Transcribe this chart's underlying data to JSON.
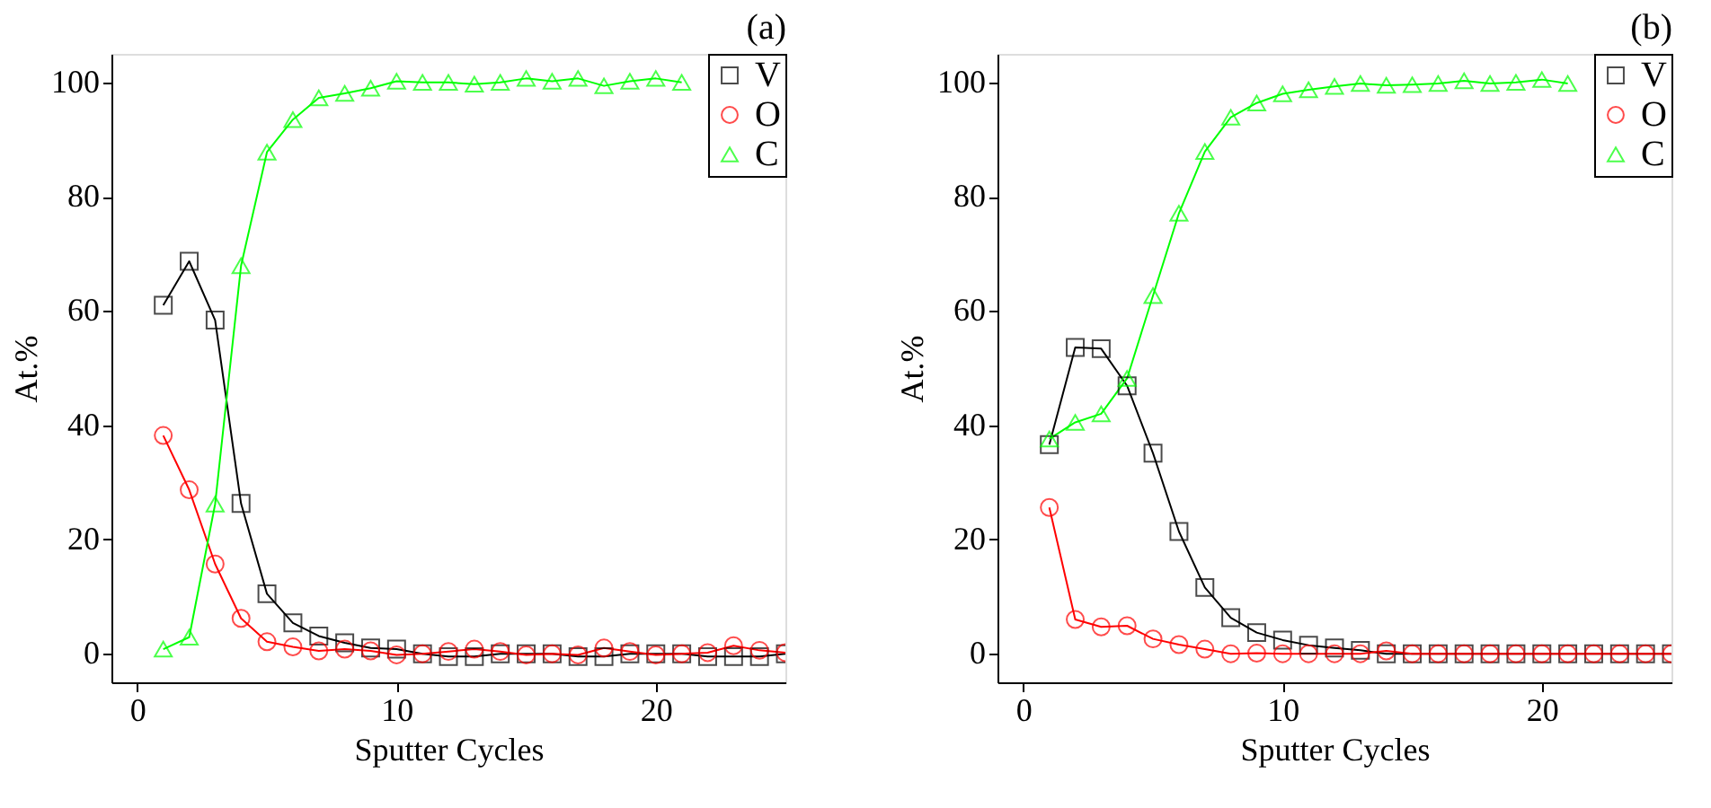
{
  "chart_data": [
    {
      "type": "line",
      "title": "(a)",
      "xlabel": "Sputter Cycles",
      "ylabel": "At.%",
      "legend": "top right",
      "grid": false,
      "line_style": "solid",
      "x": [
        1,
        2,
        3,
        4,
        5,
        6,
        7,
        8,
        9,
        10,
        11,
        12,
        13,
        14,
        15,
        16,
        17,
        18,
        19,
        20,
        21,
        22,
        23,
        24,
        25
      ],
      "xlim": [
        -1,
        25
      ],
      "ylim": [
        -5,
        105
      ],
      "xticks": [
        0,
        10,
        20
      ],
      "yticks": [
        0,
        20,
        40,
        60,
        80,
        100
      ],
      "series": [
        {
          "name": "V",
          "color": "#000000",
          "marker": "square",
          "values": [
            61,
            68.7,
            58.4,
            26.3,
            10.5,
            5.4,
            3.1,
            1.9,
            1,
            0.8,
            0,
            -0.5,
            -0.5,
            0,
            0,
            0,
            -0.5,
            -0.5,
            0,
            0,
            0,
            -0.5,
            -0.5,
            -0.5,
            0
          ]
        },
        {
          "name": "O",
          "color": "#ff0000",
          "marker": "circle",
          "values": [
            38.2,
            28.7,
            15.7,
            6.2,
            2.1,
            1.2,
            0.5,
            0.8,
            0.5,
            -0.2,
            0,
            0.4,
            0.8,
            0.4,
            -0.2,
            0,
            -0.2,
            1,
            0.4,
            -0.2,
            0,
            0.2,
            1.4,
            0.6,
            0.2
          ]
        },
        {
          "name": "C",
          "color": "#00ff00",
          "marker": "triangle",
          "values": [
            0.8,
            2.9,
            26.2,
            67.9,
            87.8,
            93.5,
            97.3,
            98.1,
            99,
            100.2,
            100,
            100,
            99.7,
            100,
            100.7,
            100.2,
            100.7,
            99.4,
            100.2,
            100.7,
            100,
            null,
            null,
            null,
            null
          ]
        }
      ]
    },
    {
      "type": "line",
      "title": "(b)",
      "xlabel": "Sputter Cycles",
      "ylabel": "At.%",
      "legend": "top right",
      "grid": false,
      "line_style": "solid",
      "x": [
        1,
        2,
        3,
        4,
        5,
        6,
        7,
        8,
        9,
        10,
        11,
        12,
        13,
        14,
        15,
        16,
        17,
        18,
        19,
        20,
        21,
        22,
        23,
        24,
        25
      ],
      "xlim": [
        -1,
        25
      ],
      "ylim": [
        -5,
        105
      ],
      "xticks": [
        0,
        10,
        20
      ],
      "yticks": [
        0,
        20,
        40,
        60,
        80,
        100
      ],
      "series": [
        {
          "name": "V",
          "color": "#000000",
          "marker": "square",
          "values": [
            36.6,
            53.6,
            53.4,
            46.9,
            35.1,
            21.4,
            11.6,
            6.3,
            3.7,
            2.4,
            1.5,
            1,
            0.6,
            0,
            0,
            0,
            0,
            0,
            0,
            0,
            0,
            0,
            0,
            0,
            0
          ]
        },
        {
          "name": "O",
          "color": "#ff0000",
          "marker": "circle",
          "values": [
            25.6,
            6,
            4.7,
            4.9,
            2.6,
            1.6,
            0.8,
            0,
            0.1,
            0,
            0,
            0,
            0,
            0.5,
            0,
            0,
            0,
            0,
            0,
            0,
            0,
            0,
            0,
            0,
            0
          ]
        },
        {
          "name": "C",
          "color": "#00ff00",
          "marker": "triangle",
          "values": [
            37.6,
            40.5,
            42,
            48.2,
            62.7,
            77.1,
            87.9,
            93.9,
            96.4,
            98,
            98.7,
            99.3,
            99.8,
            99.5,
            99.6,
            99.8,
            100.3,
            99.8,
            100,
            100.5,
            99.8,
            null,
            null,
            null,
            null
          ]
        }
      ]
    }
  ]
}
